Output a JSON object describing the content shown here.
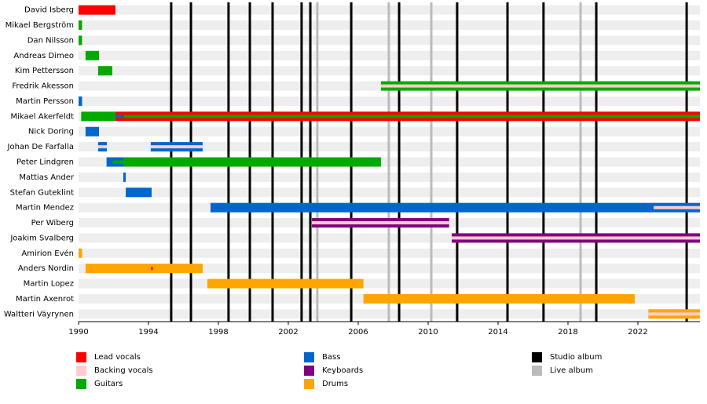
{
  "chart_data": {
    "type": "timeline",
    "xlim": [
      1990,
      2025.55
    ],
    "xticks": [
      1990,
      1994,
      1998,
      2002,
      2006,
      2010,
      2014,
      2018,
      2022
    ],
    "roles": [
      {
        "name": "Lead vocals",
        "color": "#ff0000"
      },
      {
        "name": "Backing vocals",
        "color": "#ffcccc"
      },
      {
        "name": "Guitars",
        "color": "#00aa00"
      },
      {
        "name": "Bass",
        "color": "#0066cc"
      },
      {
        "name": "Keyboards",
        "color": "#800080"
      },
      {
        "name": "Drums",
        "color": "#ffa500"
      }
    ],
    "albums": [
      {
        "name": "Studio album",
        "color": "#000000",
        "dates": [
          1995.3,
          1996.43,
          1998.58,
          1999.8,
          2001.1,
          2002.76,
          2003.26,
          2005.6,
          2008.34,
          2011.66,
          2014.54,
          2016.6,
          2019.62,
          2024.79
        ]
      },
      {
        "name": "Live album",
        "color": "#bbbbbb",
        "dates": [
          2003.66,
          2007.75,
          2010.18,
          2018.72
        ]
      }
    ],
    "rows": [
      {
        "name": "David Isberg",
        "segments": [
          {
            "role": 0,
            "start": 1990,
            "end": 1992.11
          }
        ]
      },
      {
        "name": "Mikael Bergström",
        "segments": [
          {
            "role": 2,
            "start": 1990,
            "end": 1990.2
          }
        ]
      },
      {
        "name": "Dan Nilsson",
        "segments": [
          {
            "role": 2,
            "start": 1990,
            "end": 1990.2
          }
        ]
      },
      {
        "name": "Andreas Dimeo",
        "segments": [
          {
            "role": 2,
            "start": 1990.4,
            "end": 1991.17
          }
        ]
      },
      {
        "name": "Kim Pettersson",
        "segments": [
          {
            "role": 2,
            "start": 1991.12,
            "end": 1991.93
          }
        ]
      },
      {
        "name": "Fredrik Akesson",
        "segments": [
          {
            "role": 2,
            "start": 2007.3,
            "end": 2025.55
          },
          {
            "role": 1,
            "start": 2007.3,
            "end": 2025.55,
            "inner": true
          }
        ]
      },
      {
        "name": "Martin Persson",
        "segments": [
          {
            "role": 3,
            "start": 1990,
            "end": 1990.2
          }
        ]
      },
      {
        "name": "Mikael Akerfeldt",
        "segments": [
          {
            "role": 2,
            "start": 1990.15,
            "end": 1992.1
          },
          {
            "role": 0,
            "start": 1992.1,
            "end": 2025.55
          },
          {
            "role": 2,
            "start": 1992.1,
            "end": 2025.55,
            "inner": true
          },
          {
            "role": 3,
            "start": 1992.1,
            "end": 1992.6,
            "inner": true
          }
        ]
      },
      {
        "name": "Nick Doring",
        "segments": [
          {
            "role": 3,
            "start": 1990.4,
            "end": 1991.17
          }
        ]
      },
      {
        "name": "Johan De Farfalla",
        "segments": [
          {
            "role": 3,
            "start": 1991.12,
            "end": 1991.62
          },
          {
            "role": 1,
            "start": 1991.12,
            "end": 1991.62,
            "inner": true
          },
          {
            "role": 3,
            "start": 1994.13,
            "end": 1997.1
          },
          {
            "role": 1,
            "start": 1994.13,
            "end": 1997.1,
            "inner": true
          }
        ]
      },
      {
        "name": "Peter Lindgren",
        "segments": [
          {
            "role": 3,
            "start": 1991.6,
            "end": 1992.6
          },
          {
            "role": 2,
            "start": 1991.95,
            "end": 1992.6,
            "inner": true
          },
          {
            "role": 2,
            "start": 1992.6,
            "end": 2007.3
          }
        ]
      },
      {
        "name": "Mattias Ander",
        "segments": [
          {
            "role": 3,
            "start": 1992.56,
            "end": 1992.7
          }
        ]
      },
      {
        "name": "Stefan Guteklint",
        "segments": [
          {
            "role": 3,
            "start": 1992.7,
            "end": 1994.18
          }
        ]
      },
      {
        "name": "Martin Mendez",
        "segments": [
          {
            "role": 3,
            "start": 1997.55,
            "end": 2025.55
          },
          {
            "role": 1,
            "start": 2022.9,
            "end": 2025.55,
            "inner": true
          }
        ]
      },
      {
        "name": "Per Wiberg",
        "segments": [
          {
            "role": 4,
            "start": 2003.35,
            "end": 2011.2
          },
          {
            "role": 1,
            "start": 2003.35,
            "end": 2011.2,
            "inner": true
          }
        ]
      },
      {
        "name": "Joakim Svalberg",
        "segments": [
          {
            "role": 4,
            "start": 2011.35,
            "end": 2025.55
          },
          {
            "role": 1,
            "start": 2011.35,
            "end": 2025.55,
            "inner": true
          }
        ]
      },
      {
        "name": "Amirion Evén",
        "segments": [
          {
            "role": 5,
            "start": 1990,
            "end": 1990.2
          }
        ]
      },
      {
        "name": "Anders Nordin",
        "segments": [
          {
            "role": 5,
            "start": 1990.4,
            "end": 1997.1
          },
          {
            "role": 0,
            "start": 1994.15,
            "end": 1994.25,
            "inner": true
          }
        ]
      },
      {
        "name": "Martin Lopez",
        "segments": [
          {
            "role": 5,
            "start": 1997.37,
            "end": 2006.3
          }
        ]
      },
      {
        "name": "Martin Axenrot",
        "segments": [
          {
            "role": 5,
            "start": 2006.3,
            "end": 2021.82
          }
        ]
      },
      {
        "name": "Waltteri Väyrynen",
        "segments": [
          {
            "role": 5,
            "start": 2022.6,
            "end": 2025.55
          },
          {
            "role": 1,
            "start": 2022.6,
            "end": 2025.55,
            "inner": true
          }
        ]
      }
    ]
  }
}
